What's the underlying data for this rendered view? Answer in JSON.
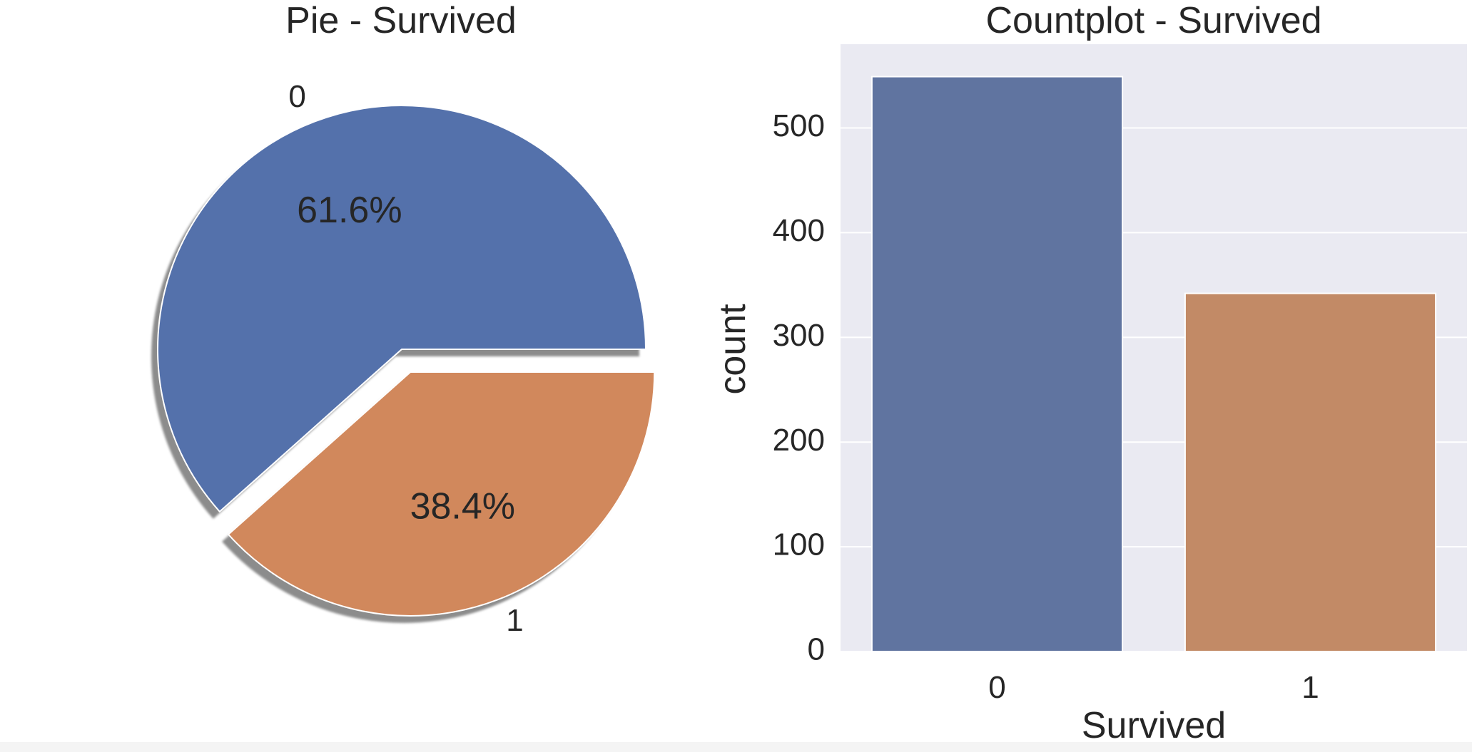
{
  "colors": {
    "pie_slice_0": "#5471ab",
    "pie_slice_1": "#d1885c",
    "bar_0": "#6074a0",
    "bar_1": "#c28a66",
    "plot_background": "#eaeaf2",
    "grid": "#ffffff",
    "text": "#262626"
  },
  "chart_data": [
    {
      "type": "pie",
      "title": "Pie - Survived",
      "labels": [
        "0",
        "1"
      ],
      "values": [
        61.6,
        38.4
      ],
      "autopct_labels": [
        "61.6%",
        "38.4%"
      ],
      "explode": [
        0,
        0.1
      ],
      "shadow": true
    },
    {
      "type": "bar",
      "title": "Countplot - Survived",
      "xlabel": "Survived",
      "ylabel": "count",
      "categories": [
        "0",
        "1"
      ],
      "values": [
        549,
        342
      ],
      "ylim": [
        0,
        580
      ],
      "yticks": [
        0,
        100,
        200,
        300,
        400,
        500
      ],
      "grid": true
    }
  ]
}
